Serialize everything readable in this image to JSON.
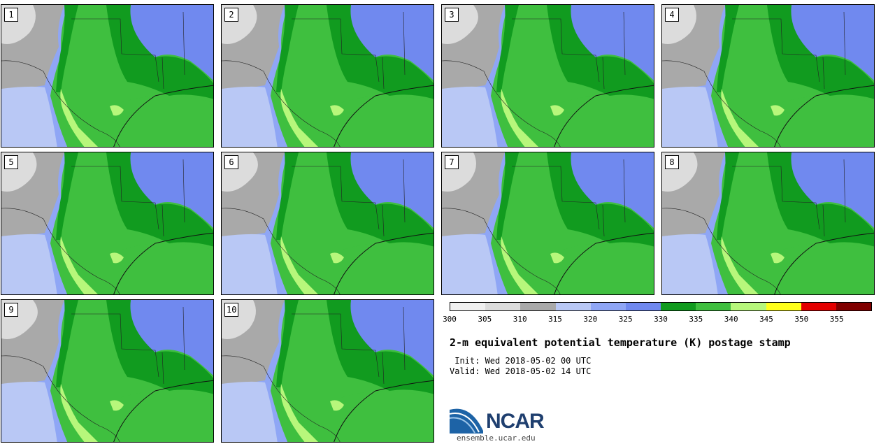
{
  "panels": [
    {
      "label": "1"
    },
    {
      "label": "2"
    },
    {
      "label": "3"
    },
    {
      "label": "4"
    },
    {
      "label": "5"
    },
    {
      "label": "6"
    },
    {
      "label": "7"
    },
    {
      "label": "8"
    },
    {
      "label": "9"
    },
    {
      "label": "10"
    }
  ],
  "colorbar": {
    "colors": [
      "#f0f0f0",
      "#dcdcdc",
      "#a9a9a9",
      "#b9c8f5",
      "#8fa6f5",
      "#7089ef",
      "#119b1f",
      "#3fbf3f",
      "#b7f77b",
      "#ffff1a",
      "#e30000",
      "#800000"
    ],
    "ticks": [
      "300",
      "305",
      "310",
      "315",
      "320",
      "325",
      "330",
      "335",
      "340",
      "345",
      "350",
      "355"
    ]
  },
  "title": "2-m equivalent potential temperature (K) postage stamp",
  "init": " Init: Wed 2018-05-02 00 UTC",
  "valid": "Valid: Wed 2018-05-02 14 UTC",
  "logo": {
    "text": "NCAR",
    "site": "ensemble.ucar.edu",
    "color": "#1f3f6f"
  }
}
